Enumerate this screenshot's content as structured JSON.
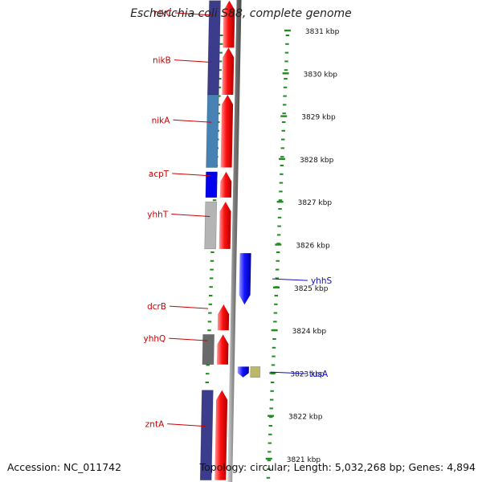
{
  "title": "Escherichia coli S88, complete genome",
  "accession": "Accession: NC_011742",
  "topology": "Topology: circular; Length: 5,032,268 bp; Genes: 4,894",
  "colors": {
    "forward": "#ff0000",
    "reverse": "#1010ee",
    "label_forward": "#cc0000",
    "label_reverse": "#1010c0",
    "backbone": "#888888",
    "tick": "#228b22"
  },
  "scale_ticks": [
    "3831 kbp",
    "3830 kbp",
    "3829 kbp",
    "3828 kbp",
    "3827 kbp",
    "3826 kbp",
    "3825 kbp",
    "3824 kbp",
    "3823 kbp",
    "3822 kbp",
    "3821 kbp"
  ],
  "genes_forward": [
    {
      "name": "nikC",
      "start_kbp": 3830.6,
      "end_kbp": 3831.7
    },
    {
      "name": "nikB",
      "start_kbp": 3829.5,
      "end_kbp": 3830.6
    },
    {
      "name": "nikA",
      "start_kbp": 3827.8,
      "end_kbp": 3829.5
    },
    {
      "name": "acpT",
      "start_kbp": 3827.1,
      "end_kbp": 3827.7
    },
    {
      "name": "yhhT",
      "start_kbp": 3825.9,
      "end_kbp": 3827.0
    },
    {
      "name": "dcrB",
      "start_kbp": 3824.0,
      "end_kbp": 3824.6
    },
    {
      "name": "yhhQ",
      "start_kbp": 3823.2,
      "end_kbp": 3823.9
    },
    {
      "name": "zntA",
      "start_kbp": 3820.5,
      "end_kbp": 3822.6
    }
  ],
  "genes_reverse": [
    {
      "name": "yhhS",
      "start_kbp": 3824.6,
      "end_kbp": 3825.8
    },
    {
      "name": "tusA",
      "start_kbp": 3822.9,
      "end_kbp": 3823.15
    }
  ],
  "cog_boxes": [
    {
      "gene": "nikC",
      "color": "#3c3c8c"
    },
    {
      "gene": "nikB",
      "color": "#3c3c8c"
    },
    {
      "gene": "nikA",
      "color": "#4682b4"
    },
    {
      "gene": "acpT",
      "color": "#0000ee"
    },
    {
      "gene": "yhhT",
      "color": "#b4b4b4"
    },
    {
      "gene": "yhhQ",
      "color": "#6a6a6a"
    },
    {
      "gene": "tusA",
      "color": "#bdb76b"
    },
    {
      "gene": "zntA",
      "color": "#3c3c8c"
    }
  ]
}
